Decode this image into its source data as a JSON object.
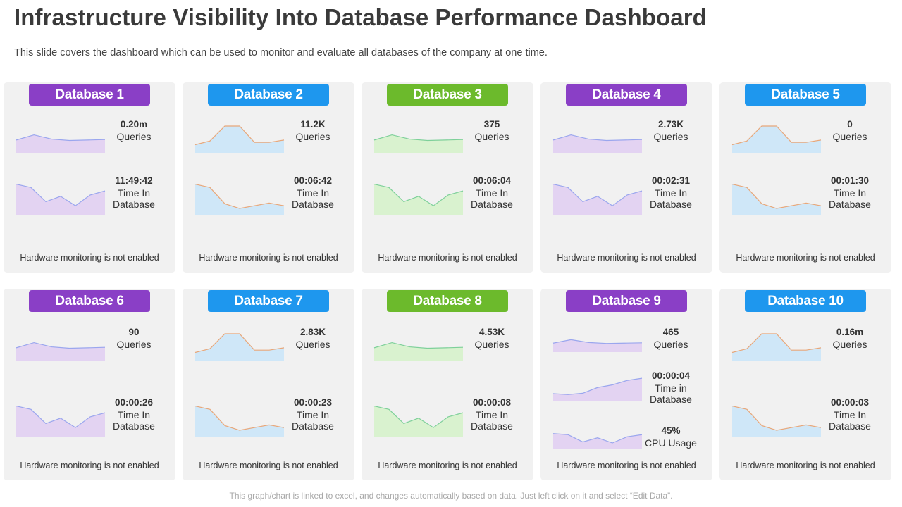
{
  "header": {
    "title": "Infrastructure Visibility Into Database Performance Dashboard",
    "subtitle": "This slide covers the dashboard which can be used to monitor and evaluate all databases of the company at one time."
  },
  "colors": {
    "purple": "#8a3fc6",
    "blue": "#1e97ee",
    "green": "#6cba2c",
    "purple_fill": "#e3d3f2",
    "purple_line": "#9aa6ee",
    "blue_fill": "#cfe7f8",
    "blue_line": "#e8a77a",
    "green_fill": "#d9f2cf",
    "green_line": "#7ed09a",
    "card_bg": "#f1f1f1"
  },
  "databases": [
    {
      "name": "Database 1",
      "theme": "purple",
      "queries_value": "0.20m",
      "queries_label": "Queries",
      "time_value": "11:49:42",
      "time_label_1": "Time In",
      "time_label_2": "Database",
      "hardware_note": "Hardware monitoring is not enabled",
      "queries_series": [
        40,
        62,
        44,
        38,
        40,
        42
      ],
      "time_series": [
        80,
        70,
        28,
        44,
        16,
        48,
        60
      ]
    },
    {
      "name": "Database 2",
      "theme": "blue",
      "queries_value": "11.2K",
      "queries_label": "Queries",
      "time_value": "00:06:42",
      "time_label_1": "Time In",
      "time_label_2": "Database",
      "hardware_note": "Hardware monitoring is not enabled",
      "queries_series": [
        20,
        36,
        100,
        100,
        30,
        30,
        40
      ],
      "time_series": [
        80,
        70,
        22,
        8,
        16,
        24,
        16
      ]
    },
    {
      "name": "Database 3",
      "theme": "green",
      "queries_value": "375",
      "queries_label": "Queries",
      "time_value": "00:06:04",
      "time_label_1": "Time In",
      "time_label_2": "Database",
      "hardware_note": "Hardware monitoring is not enabled",
      "queries_series": [
        40,
        62,
        44,
        38,
        40,
        42
      ],
      "time_series": [
        80,
        70,
        28,
        44,
        16,
        48,
        60
      ]
    },
    {
      "name": "Database 4",
      "theme": "purple",
      "queries_value": "2.73K",
      "queries_label": "Queries",
      "time_value": "00:02:31",
      "time_label_1": "Time In",
      "time_label_2": "Database",
      "hardware_note": "Hardware monitoring is not enabled",
      "queries_series": [
        40,
        62,
        44,
        38,
        40,
        42
      ],
      "time_series": [
        80,
        70,
        28,
        44,
        16,
        48,
        60
      ]
    },
    {
      "name": "Database 5",
      "theme": "blue",
      "queries_value": "0",
      "queries_label": "Queries",
      "time_value": "00:01:30",
      "time_label_1": "Time In",
      "time_label_2": "Database",
      "hardware_note": "Hardware monitoring is not enabled",
      "queries_series": [
        20,
        36,
        100,
        100,
        30,
        30,
        40
      ],
      "time_series": [
        80,
        70,
        22,
        8,
        16,
        24,
        16
      ]
    },
    {
      "name": "Database 6",
      "theme": "purple",
      "queries_value": "90",
      "queries_label": "Queries",
      "time_value": "00:00:26",
      "time_label_1": "Time In",
      "time_label_2": "Database",
      "hardware_note": "Hardware monitoring is not enabled",
      "queries_series": [
        40,
        62,
        44,
        38,
        40,
        42
      ],
      "time_series": [
        80,
        70,
        28,
        44,
        16,
        48,
        60
      ]
    },
    {
      "name": "Database 7",
      "theme": "blue",
      "queries_value": "2.83K",
      "queries_label": "Queries",
      "time_value": "00:00:23",
      "time_label_1": "Time In",
      "time_label_2": "Database",
      "hardware_note": "Hardware monitoring is not enabled",
      "queries_series": [
        20,
        36,
        100,
        100,
        30,
        30,
        40
      ],
      "time_series": [
        80,
        70,
        22,
        8,
        16,
        24,
        16
      ]
    },
    {
      "name": "Database 8",
      "theme": "green",
      "queries_value": "4.53K",
      "queries_label": "Queries",
      "time_value": "00:00:08",
      "time_label_1": "Time In",
      "time_label_2": "Database",
      "hardware_note": "Hardware monitoring is not enabled",
      "queries_series": [
        40,
        62,
        44,
        38,
        40,
        42
      ],
      "time_series": [
        80,
        70,
        28,
        44,
        16,
        48,
        60
      ]
    },
    {
      "name": "Database 9",
      "theme": "purple",
      "queries_value": "465",
      "queries_label": "Queries",
      "time_value": "00:00:04",
      "time_label_1": "Time in",
      "time_label_2": "Database",
      "cpu_value": "45%",
      "cpu_label": "CPU Usage",
      "hardware_note": "Hardware monitoring is not enabled",
      "queries_series": [
        40,
        62,
        44,
        38,
        40,
        42
      ],
      "time_series": [
        20,
        16,
        22,
        48,
        60,
        80,
        90
      ],
      "cpu_series": [
        60,
        55,
        20,
        40,
        15,
        45,
        55
      ]
    },
    {
      "name": "Database 10",
      "theme": "blue",
      "queries_value": "0.16m",
      "queries_label": "Queries",
      "time_value": "00:00:03",
      "time_label_1": "Time In",
      "time_label_2": "Database",
      "hardware_note": "Hardware monitoring is not enabled",
      "queries_series": [
        20,
        36,
        100,
        100,
        30,
        30,
        40
      ],
      "time_series": [
        80,
        70,
        22,
        8,
        16,
        24,
        16
      ]
    }
  ],
  "disclaimer": "This graph/chart is linked to excel, and changes automatically based on data. Just left click on it and select “Edit Data”."
}
